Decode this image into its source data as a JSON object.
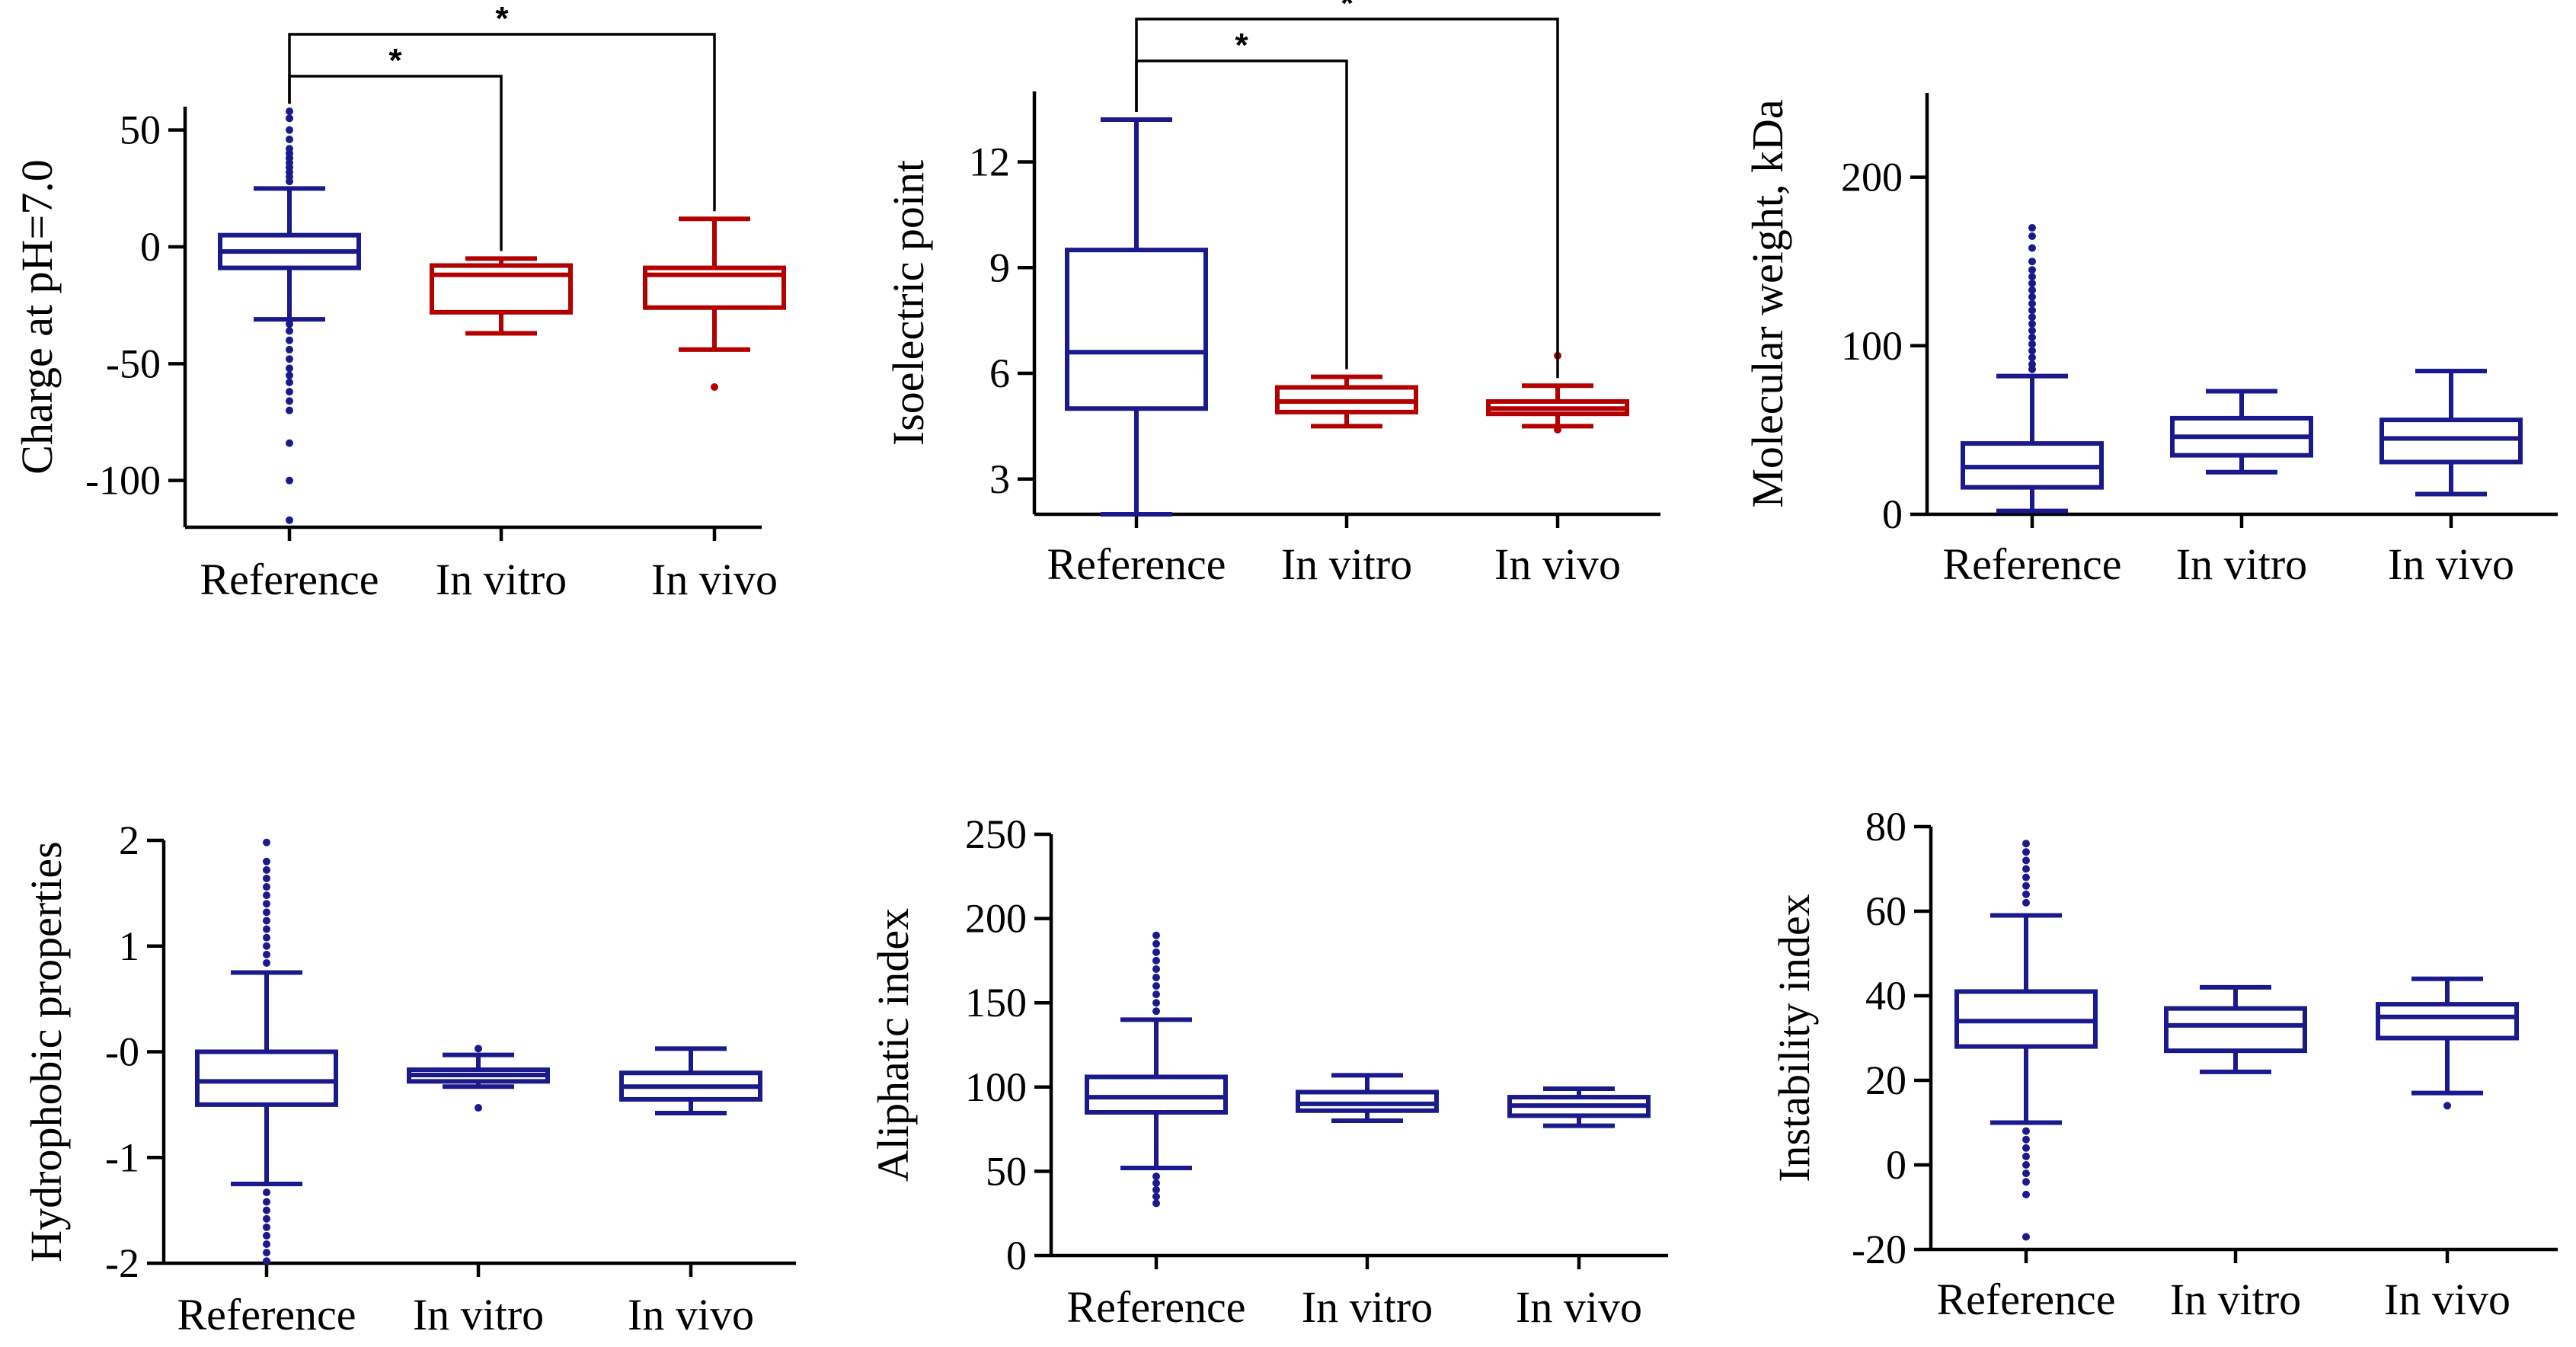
{
  "colors": {
    "blue": "#1a1a8c",
    "red": "#b30000",
    "axis": "#000000"
  },
  "chart_data": [
    {
      "type": "box",
      "ylabel": "Charge at pH=7.0",
      "ylim": [
        -120,
        60
      ],
      "yticks": [
        50,
        0,
        -50,
        -100
      ],
      "ytick_labels": [
        "50",
        "0",
        "-50",
        "-100"
      ],
      "categories": [
        "Reference",
        "In vitro",
        "In vivo"
      ],
      "boxes": [
        {
          "category": "Reference",
          "color": "blue",
          "whislo": -31,
          "q1": -9,
          "med": -2,
          "q3": 5,
          "whishi": 25,
          "outliers": [
            58,
            55,
            50,
            46,
            42,
            40,
            38,
            36,
            34,
            32,
            30,
            28,
            -33,
            -36,
            -40,
            -44,
            -48,
            -52,
            -55,
            -58,
            -62,
            -66,
            -70,
            -84,
            -100,
            -117
          ]
        },
        {
          "category": "In vitro",
          "color": "red",
          "whislo": -37,
          "q1": -28,
          "med": -12,
          "q3": -8,
          "whishi": -5,
          "outliers": []
        },
        {
          "category": "In vivo",
          "color": "red",
          "whislo": -44,
          "q1": -26,
          "med": -12,
          "q3": -9,
          "whishi": 12,
          "outliers": [
            -60
          ]
        }
      ],
      "significance": [
        {
          "from": "Reference",
          "to": "In vitro",
          "label": "*",
          "level": 1
        },
        {
          "from": "Reference",
          "to": "In vivo",
          "label": "*",
          "level": 2
        }
      ]
    },
    {
      "type": "box",
      "ylabel": "Isoelectric point",
      "ylim": [
        2,
        14
      ],
      "yticks": [
        12,
        9,
        6,
        3
      ],
      "ytick_labels": [
        "12",
        "9",
        "6",
        "3"
      ],
      "categories": [
        "Reference",
        "In vitro",
        "In vivo"
      ],
      "boxes": [
        {
          "category": "Reference",
          "color": "blue",
          "whislo": 2.0,
          "q1": 5.0,
          "med": 6.6,
          "q3": 9.5,
          "whishi": 13.2,
          "outliers": []
        },
        {
          "category": "In vitro",
          "color": "red",
          "whislo": 4.5,
          "q1": 4.9,
          "med": 5.2,
          "q3": 5.6,
          "whishi": 5.9,
          "outliers": []
        },
        {
          "category": "In vivo",
          "color": "red",
          "whislo": 4.5,
          "q1": 4.85,
          "med": 5.0,
          "q3": 5.2,
          "whishi": 5.65,
          "outliers": [
            6.5,
            4.4
          ]
        }
      ],
      "significance": [
        {
          "from": "Reference",
          "to": "In vitro",
          "label": "*",
          "level": 1
        },
        {
          "from": "Reference",
          "to": "In vivo",
          "label": "*",
          "level": 2
        }
      ]
    },
    {
      "type": "box",
      "ylabel": "Molecular weight, kDa",
      "ylim": [
        0,
        250
      ],
      "yticks": [
        200,
        100,
        0
      ],
      "ytick_labels": [
        "200",
        "100",
        "0"
      ],
      "categories": [
        "Reference",
        "In vitro",
        "In vivo"
      ],
      "boxes": [
        {
          "category": "Reference",
          "color": "blue",
          "whislo": 2,
          "q1": 16,
          "med": 28,
          "q3": 42,
          "whishi": 82,
          "outliers": [
            170,
            165,
            158,
            150,
            145,
            141,
            137,
            133,
            129,
            125,
            121,
            117,
            113,
            109,
            105,
            101,
            97,
            93,
            89,
            86
          ]
        },
        {
          "category": "In vitro",
          "color": "blue",
          "whislo": 25,
          "q1": 35,
          "med": 46,
          "q3": 57,
          "whishi": 73,
          "outliers": []
        },
        {
          "category": "In vivo",
          "color": "blue",
          "whislo": 12,
          "q1": 31,
          "med": 45,
          "q3": 56,
          "whishi": 85,
          "outliers": []
        }
      ],
      "significance": []
    },
    {
      "type": "box",
      "ylabel": "Hydrophobic properties",
      "ylim": [
        -2,
        2
      ],
      "yticks": [
        2,
        1,
        0,
        -1,
        -2
      ],
      "ytick_labels": [
        "2",
        "1",
        "-0",
        "-1",
        "-2"
      ],
      "categories": [
        "Reference",
        "In vitro",
        "In vivo"
      ],
      "boxes": [
        {
          "category": "Reference",
          "color": "blue",
          "whislo": -1.25,
          "q1": -0.5,
          "med": -0.28,
          "q3": 0.0,
          "whishi": 0.75,
          "outliers": [
            1.98,
            1.8,
            1.72,
            1.64,
            1.56,
            1.48,
            1.4,
            1.32,
            1.24,
            1.16,
            1.08,
            1.0,
            0.92,
            0.84,
            -1.33,
            -1.42,
            -1.5,
            -1.58,
            -1.66,
            -1.74,
            -1.82,
            -1.9,
            -1.98
          ]
        },
        {
          "category": "In vitro",
          "color": "blue",
          "whislo": -0.33,
          "q1": -0.28,
          "med": -0.22,
          "q3": -0.17,
          "whishi": -0.03,
          "outliers": [
            0.03,
            -0.53
          ]
        },
        {
          "category": "In vivo",
          "color": "blue",
          "whislo": -0.58,
          "q1": -0.45,
          "med": -0.33,
          "q3": -0.2,
          "whishi": 0.03,
          "outliers": []
        }
      ],
      "significance": []
    },
    {
      "type": "box",
      "ylabel": "Aliphatic index",
      "ylim": [
        0,
        250
      ],
      "yticks": [
        250,
        200,
        150,
        100,
        50,
        0
      ],
      "ytick_labels": [
        "250",
        "200",
        "150",
        "100",
        "50",
        "0"
      ],
      "categories": [
        "Reference",
        "In vitro",
        "In vivo"
      ],
      "boxes": [
        {
          "category": "Reference",
          "color": "blue",
          "whislo": 52,
          "q1": 85,
          "med": 94,
          "q3": 106,
          "whishi": 140,
          "outliers": [
            190,
            185,
            180,
            175,
            170,
            165,
            160,
            155,
            150,
            145,
            47,
            43,
            39,
            35,
            31
          ]
        },
        {
          "category": "In vitro",
          "color": "blue",
          "whislo": 80,
          "q1": 86,
          "med": 90,
          "q3": 97,
          "whishi": 107,
          "outliers": []
        },
        {
          "category": "In vivo",
          "color": "blue",
          "whislo": 77,
          "q1": 83,
          "med": 89,
          "q3": 94,
          "whishi": 99,
          "outliers": []
        }
      ],
      "significance": []
    },
    {
      "type": "box",
      "ylabel": "Instability index",
      "ylim": [
        -20,
        80
      ],
      "yticks": [
        80,
        60,
        40,
        20,
        0,
        -20
      ],
      "ytick_labels": [
        "80",
        "60",
        "40",
        "20",
        "0",
        "-20"
      ],
      "categories": [
        "Reference",
        "In vitro",
        "In vivo"
      ],
      "boxes": [
        {
          "category": "Reference",
          "color": "blue",
          "whislo": 10,
          "q1": 28,
          "med": 34,
          "q3": 41,
          "whishi": 59,
          "outliers": [
            76,
            74,
            72,
            70,
            68,
            66,
            64,
            62,
            8,
            6,
            4,
            2,
            0,
            -2,
            -4,
            -7,
            -17
          ]
        },
        {
          "category": "In vitro",
          "color": "blue",
          "whislo": 22,
          "q1": 27,
          "med": 33,
          "q3": 37,
          "whishi": 42,
          "outliers": []
        },
        {
          "category": "In vivo",
          "color": "blue",
          "whislo": 17,
          "q1": 30,
          "med": 35,
          "q3": 38,
          "whishi": 44,
          "outliers": [
            14
          ]
        }
      ],
      "significance": []
    }
  ]
}
